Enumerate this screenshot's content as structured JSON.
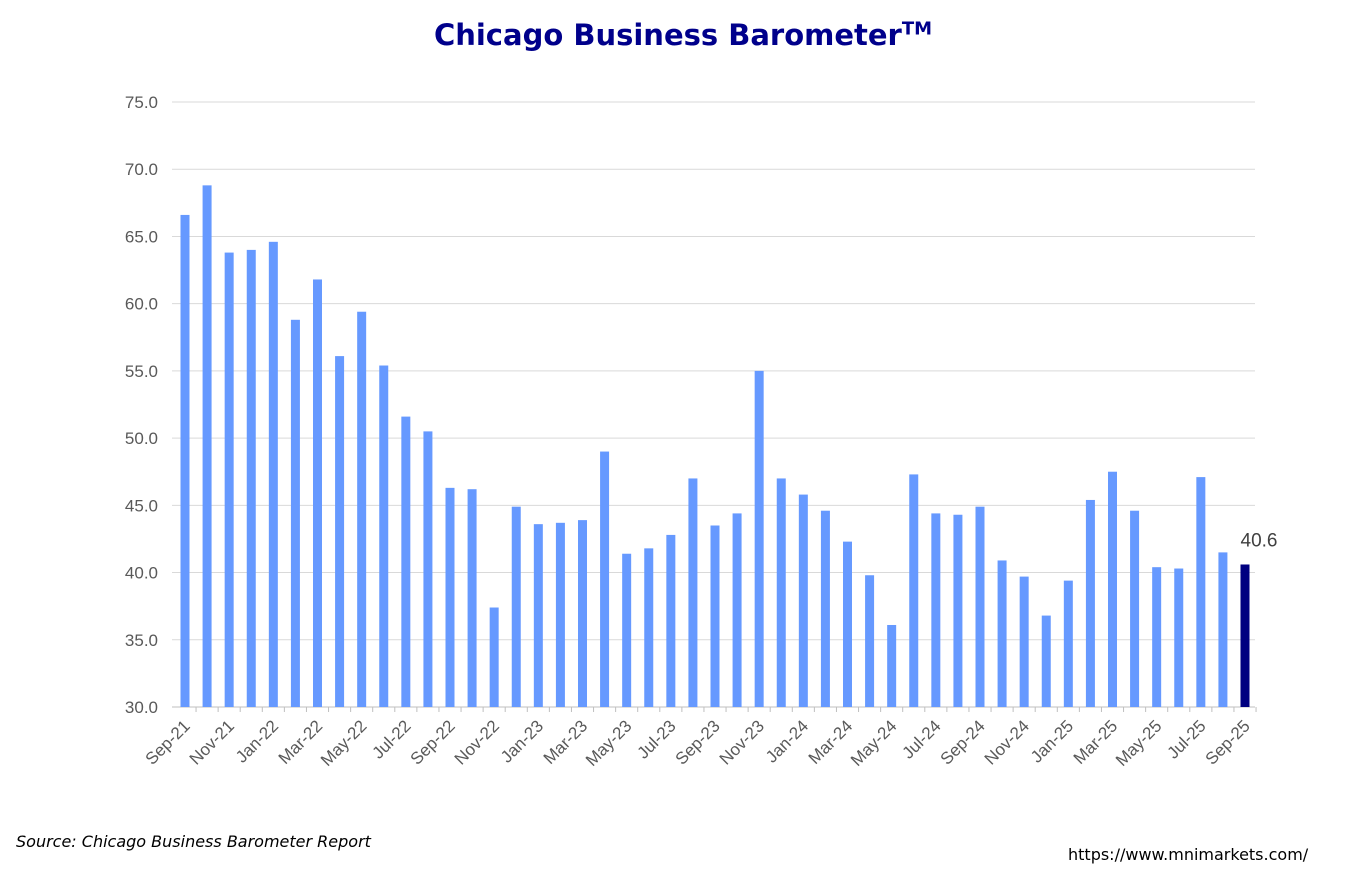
{
  "chart_data": {
    "type": "bar",
    "title": "Chicago Business Barometer",
    "title_superscript": "TM",
    "xlabel": "",
    "ylabel": "",
    "ylim": [
      30,
      75
    ],
    "yticks": [
      "30.0",
      "35.0",
      "40.0",
      "45.0",
      "50.0",
      "55.0",
      "60.0",
      "65.0",
      "70.0",
      "75.0"
    ],
    "grid": true,
    "categories": [
      "Sep-21",
      "Oct-21",
      "Nov-21",
      "Dec-21",
      "Jan-22",
      "Feb-22",
      "Mar-22",
      "Apr-22",
      "May-22",
      "Jun-22",
      "Jul-22",
      "Aug-22",
      "Sep-22",
      "Oct-22",
      "Nov-22",
      "Dec-22",
      "Jan-23",
      "Feb-23",
      "Mar-23",
      "Apr-23",
      "May-23",
      "Jun-23",
      "Jul-23",
      "Aug-23",
      "Sep-23",
      "Oct-23",
      "Nov-23",
      "Dec-23",
      "Jan-24",
      "Feb-24",
      "Mar-24",
      "Apr-24",
      "May-24",
      "Jun-24",
      "Jul-24",
      "Aug-24",
      "Sep-24",
      "Oct-24",
      "Nov-24",
      "Dec-24",
      "Jan-25",
      "Feb-25",
      "Mar-25",
      "Apr-25",
      "May-25",
      "Jun-25",
      "Jul-25",
      "Aug-25",
      "Sep-25"
    ],
    "values": [
      66.6,
      68.8,
      63.8,
      64.0,
      64.6,
      58.8,
      61.8,
      56.1,
      59.4,
      55.4,
      51.6,
      50.5,
      46.3,
      46.2,
      37.4,
      44.9,
      43.6,
      43.7,
      43.9,
      49.0,
      41.4,
      41.8,
      42.8,
      47.0,
      43.5,
      44.4,
      55.0,
      47.0,
      45.8,
      44.6,
      42.3,
      39.8,
      36.1,
      47.3,
      44.4,
      44.3,
      44.9,
      40.9,
      39.7,
      36.8,
      39.4,
      45.4,
      47.5,
      44.6,
      40.4,
      40.3,
      47.1,
      41.5,
      40.6
    ],
    "data_label": "40.6",
    "colors": {
      "bar": "#6699FF",
      "highlight": "#000080",
      "title": "#00008B",
      "grid": "#D9D9D9"
    }
  },
  "footer": {
    "source": "Source: Chicago Business Barometer Report",
    "url": "https://www.mnimarkets.com/"
  }
}
